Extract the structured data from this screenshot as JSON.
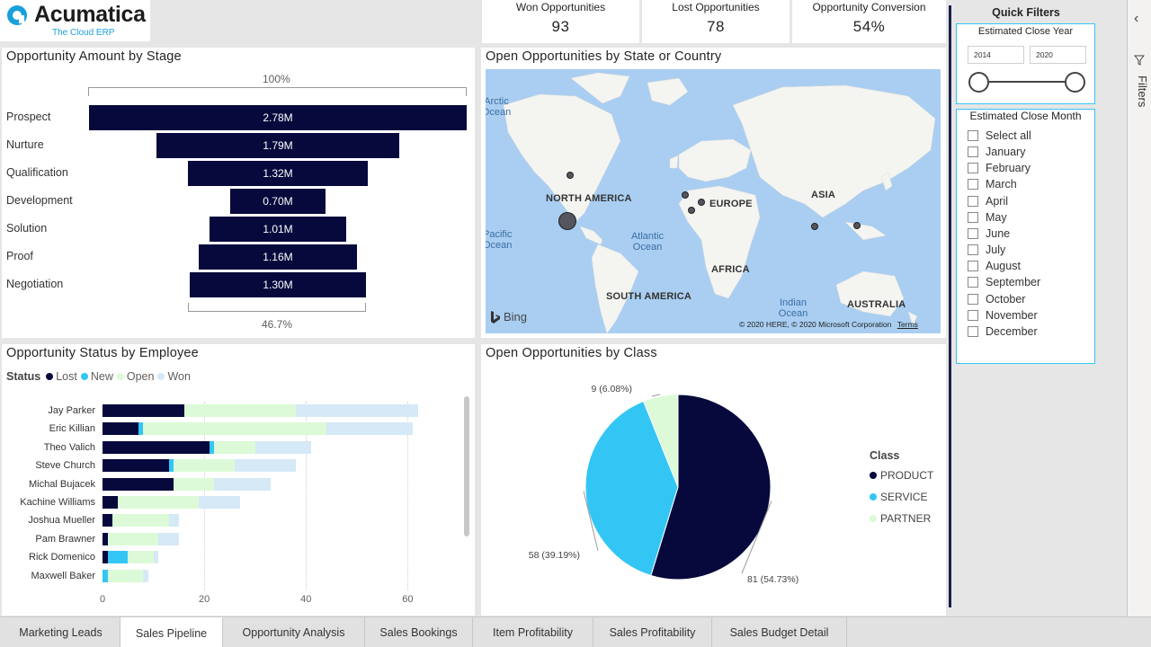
{
  "logo": {
    "name": "Acumatica",
    "tagline": "The Cloud ERP"
  },
  "kpis": [
    {
      "label": "Won Opportunities",
      "value": "93"
    },
    {
      "label": "Lost Opportunities",
      "value": "78"
    },
    {
      "label": "Opportunity Conversion",
      "value": "54%"
    }
  ],
  "funnel": {
    "title": "Opportunity Amount by Stage",
    "top_pct": "100%",
    "bottom_pct": "46.7%",
    "stages": [
      {
        "label": "Prospect",
        "amount": 2.78,
        "display": "2.78M"
      },
      {
        "label": "Nurture",
        "amount": 1.79,
        "display": "1.79M"
      },
      {
        "label": "Qualification",
        "amount": 1.32,
        "display": "1.32M"
      },
      {
        "label": "Development",
        "amount": 0.7,
        "display": "0.70M"
      },
      {
        "label": "Solution",
        "amount": 1.01,
        "display": "1.01M"
      },
      {
        "label": "Proof",
        "amount": 1.16,
        "display": "1.16M"
      },
      {
        "label": "Negotiation",
        "amount": 1.3,
        "display": "1.30M"
      }
    ]
  },
  "map": {
    "title": "Open Opportunities by State or Country",
    "continents": [
      "NORTH AMERICA",
      "EUROPE",
      "ASIA",
      "AFRICA",
      "SOUTH AMERICA",
      "AUSTRALIA"
    ],
    "oceans": [
      "Arctic Ocean",
      "Pacific Ocean",
      "Atlantic Ocean",
      "Indian Ocean"
    ],
    "brand": "Bing",
    "copyright": "© 2020 HERE, © 2020 Microsoft Corporation",
    "terms": "Terms"
  },
  "status_chart": {
    "title": "Opportunity Status by Employee",
    "legend_title": "Status",
    "legend": [
      {
        "name": "Lost",
        "color": "#07093d"
      },
      {
        "name": "New",
        "color": "#33c6f5"
      },
      {
        "name": "Open",
        "color": "#dcfad7"
      },
      {
        "name": "Won",
        "color": "#d5e9f7"
      }
    ],
    "x_ticks": [
      "0",
      "20",
      "40",
      "60"
    ]
  },
  "chart_data": [
    {
      "type": "bar",
      "title": "Opportunity Status by Employee",
      "orientation": "horizontal",
      "stacked": true,
      "categories": [
        "Jay Parker",
        "Eric Killian",
        "Theo Valich",
        "Steve Church",
        "Michal Bujacek",
        "Kachine Williams",
        "Joshua Mueller",
        "Pam Brawner",
        "Rick Domenico",
        "Maxwell Baker"
      ],
      "series": [
        {
          "name": "Lost",
          "values": [
            16,
            7,
            21,
            13,
            14,
            3,
            2,
            1,
            1,
            0
          ]
        },
        {
          "name": "New",
          "values": [
            0,
            1,
            1,
            1,
            0,
            0,
            0,
            0,
            4,
            1
          ]
        },
        {
          "name": "Open",
          "values": [
            22,
            36,
            8,
            12,
            8,
            16,
            11,
            10,
            5,
            7
          ]
        },
        {
          "name": "Won",
          "values": [
            24,
            17,
            11,
            12,
            11,
            8,
            2,
            4,
            1,
            1
          ]
        }
      ],
      "xlim": [
        0,
        70
      ],
      "legend_position": "top-left"
    },
    {
      "type": "pie",
      "title": "Open Opportunities by Class",
      "legend_title": "Class",
      "slices": [
        {
          "name": "PRODUCT",
          "value": 81,
          "label": "81 (54.73%)",
          "color": "#07093d"
        },
        {
          "name": "SERVICE",
          "value": 58,
          "label": "58 (39.19%)",
          "color": "#33c6f5"
        },
        {
          "name": "PARTNER",
          "value": 9,
          "label": "9 (6.08%)",
          "color": "#dcfad7"
        }
      ],
      "legend_position": "right"
    }
  ],
  "filters": {
    "title": "Quick Filters",
    "year": {
      "label": "Estimated Close Year",
      "from": "2014",
      "to": "2020"
    },
    "month": {
      "label": "Estimated Close Month",
      "options": [
        "Select all",
        "January",
        "February",
        "March",
        "April",
        "May",
        "June",
        "July",
        "August",
        "September",
        "October",
        "November",
        "December"
      ]
    },
    "pane_label": "Filters"
  },
  "tabs": [
    "Marketing Leads",
    "Sales Pipeline",
    "Opportunity Analysis",
    "Sales Bookings",
    "Item Profitability",
    "Sales Profitability",
    "Sales Budget Detail"
  ],
  "active_tab": "Sales Pipeline"
}
